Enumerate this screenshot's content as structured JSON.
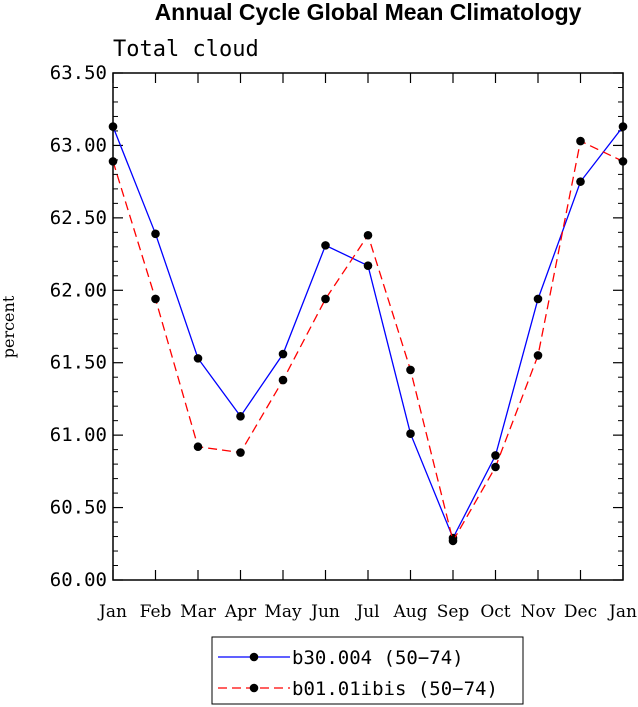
{
  "chart_data": {
    "type": "line",
    "title": "Annual Cycle Global Mean Climatology",
    "subtitle": "Total cloud",
    "xlabel": "",
    "ylabel": "percent",
    "categories": [
      "Jan",
      "Feb",
      "Mar",
      "Apr",
      "May",
      "Jun",
      "Jul",
      "Aug",
      "Sep",
      "Oct",
      "Nov",
      "Dec",
      "Jan"
    ],
    "ylim": [
      60.0,
      63.5
    ],
    "yticks": [
      "60.00",
      "60.50",
      "61.00",
      "61.50",
      "62.00",
      "62.50",
      "63.00",
      "63.50"
    ],
    "series": [
      {
        "name": "b30.004 (50-74)",
        "color": "#0000ff",
        "dash": "solid",
        "values": [
          63.13,
          62.39,
          61.53,
          61.13,
          61.56,
          62.31,
          62.17,
          61.01,
          60.29,
          60.86,
          61.94,
          62.75,
          63.13
        ]
      },
      {
        "name": "b01.01ibis (50-74)",
        "color": "#ff0000",
        "dash": "dashed",
        "values": [
          62.89,
          61.94,
          60.92,
          60.88,
          61.38,
          61.94,
          62.38,
          61.45,
          60.27,
          60.78,
          61.55,
          63.03,
          62.89
        ]
      }
    ],
    "legend": {
      "labels": [
        "b30.004 (50−74)",
        "b01.01ibis (50−74)"
      ],
      "position": "bottom-center"
    }
  }
}
